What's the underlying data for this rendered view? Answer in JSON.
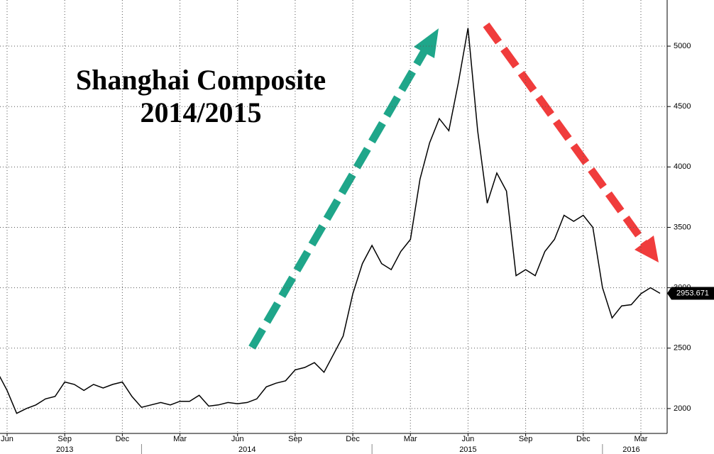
{
  "chart_data": {
    "type": "line",
    "title": [
      "Shanghai Composite",
      "2014/2015"
    ],
    "categories": [
      null,
      "Jun",
      null,
      null,
      null,
      null,
      null,
      "Sep",
      null,
      null,
      null,
      null,
      null,
      "Dec",
      null,
      null,
      null,
      null,
      null,
      "Mar",
      null,
      null,
      null,
      null,
      null,
      "Jun",
      null,
      null,
      null,
      null,
      null,
      "Sep",
      null,
      null,
      null,
      null,
      null,
      "Dec",
      null,
      null,
      null,
      null,
      null,
      "Mar",
      null,
      null,
      null,
      null,
      null,
      "Jun",
      null,
      null,
      null,
      null,
      null,
      "Sep",
      null,
      null,
      null,
      null,
      null,
      "Dec",
      null,
      null,
      null,
      null,
      null,
      "Mar",
      null,
      null
    ],
    "years": [
      null,
      null,
      null,
      null,
      null,
      null,
      null,
      "2013",
      null,
      null,
      null,
      null,
      null,
      null,
      null,
      null,
      null,
      null,
      null,
      null,
      null,
      null,
      null,
      null,
      null,
      null,
      "2014",
      null,
      null,
      null,
      null,
      null,
      null,
      null,
      null,
      null,
      null,
      null,
      null,
      null,
      null,
      null,
      null,
      null,
      null,
      null,
      null,
      null,
      null,
      "2015",
      null,
      null,
      null,
      null,
      null,
      null,
      null,
      null,
      null,
      null,
      null,
      null,
      null,
      null,
      null,
      null,
      "2016",
      null,
      null,
      null
    ],
    "series": [
      {
        "color": "#000000",
        "values": [
          2300,
          2150,
          1960,
          2000,
          2030,
          2080,
          2100,
          2220,
          2200,
          2150,
          2200,
          2170,
          2200,
          2220,
          2100,
          2010,
          2030,
          2050,
          2030,
          2060,
          2060,
          2110,
          2020,
          2030,
          2050,
          2040,
          2050,
          2080,
          2180,
          2210,
          2230,
          2320,
          2340,
          2380,
          2300,
          2450,
          2600,
          2950,
          3200,
          3350,
          3200,
          3150,
          3300,
          3400,
          3900,
          4200,
          4400,
          4300,
          4700,
          5150,
          4300,
          3700,
          3950,
          3800,
          3100,
          3150,
          3100,
          3300,
          3400,
          3600,
          3550,
          3600,
          3500,
          3000,
          2750,
          2850,
          2860,
          2950,
          3000,
          2953.671
        ]
      }
    ],
    "ylim": [
      1794,
      5382
    ],
    "yticks": [
      2000,
      2500,
      3000,
      3500,
      4000,
      4500,
      5000
    ],
    "grid": true
  }
}
